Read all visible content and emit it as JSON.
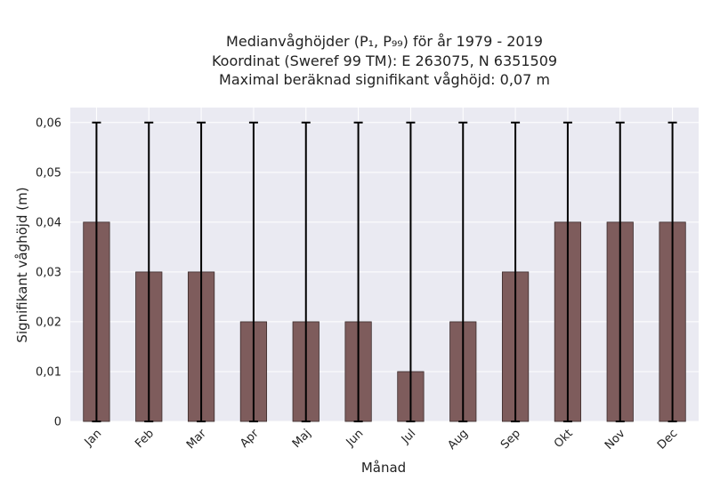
{
  "chart_data": {
    "type": "bar",
    "title_lines": [
      "Medianvåghöjder (P₁, P₉₉) för år 1979 - 2019",
      "Koordinat (Sweref 99 TM): E 263075, N 6351509",
      "Maximal beräknad signifikant våghöjd: 0,07 m"
    ],
    "xlabel": "Månad",
    "ylabel": "Signifikant våghöjd (m)",
    "categories": [
      "Jan",
      "Feb",
      "Mar",
      "Apr",
      "Maj",
      "Jun",
      "Jul",
      "Aug",
      "Sep",
      "Okt",
      "Nov",
      "Dec"
    ],
    "values": [
      0.04,
      0.03,
      0.03,
      0.02,
      0.02,
      0.02,
      0.01,
      0.02,
      0.03,
      0.04,
      0.04,
      0.04
    ],
    "error_low": [
      0,
      0,
      0,
      0,
      0,
      0,
      0,
      0,
      0,
      0,
      0,
      0
    ],
    "error_high": [
      0.06,
      0.06,
      0.06,
      0.06,
      0.06,
      0.06,
      0.06,
      0.06,
      0.06,
      0.06,
      0.06,
      0.06
    ],
    "ylim": [
      0,
      0.063
    ],
    "yticks": [
      0,
      0.01,
      0.02,
      0.03,
      0.04,
      0.05,
      0.06
    ],
    "ytick_labels": [
      "0",
      "0,01",
      "0,02",
      "0,03",
      "0,04",
      "0,05",
      "0,06"
    ],
    "grid": true,
    "colors": {
      "bar": "#7e5c5c",
      "bar_edge": "#3a2a2a",
      "error": "#000000",
      "background": "#eaeaf2",
      "grid": "#ffffff"
    }
  }
}
